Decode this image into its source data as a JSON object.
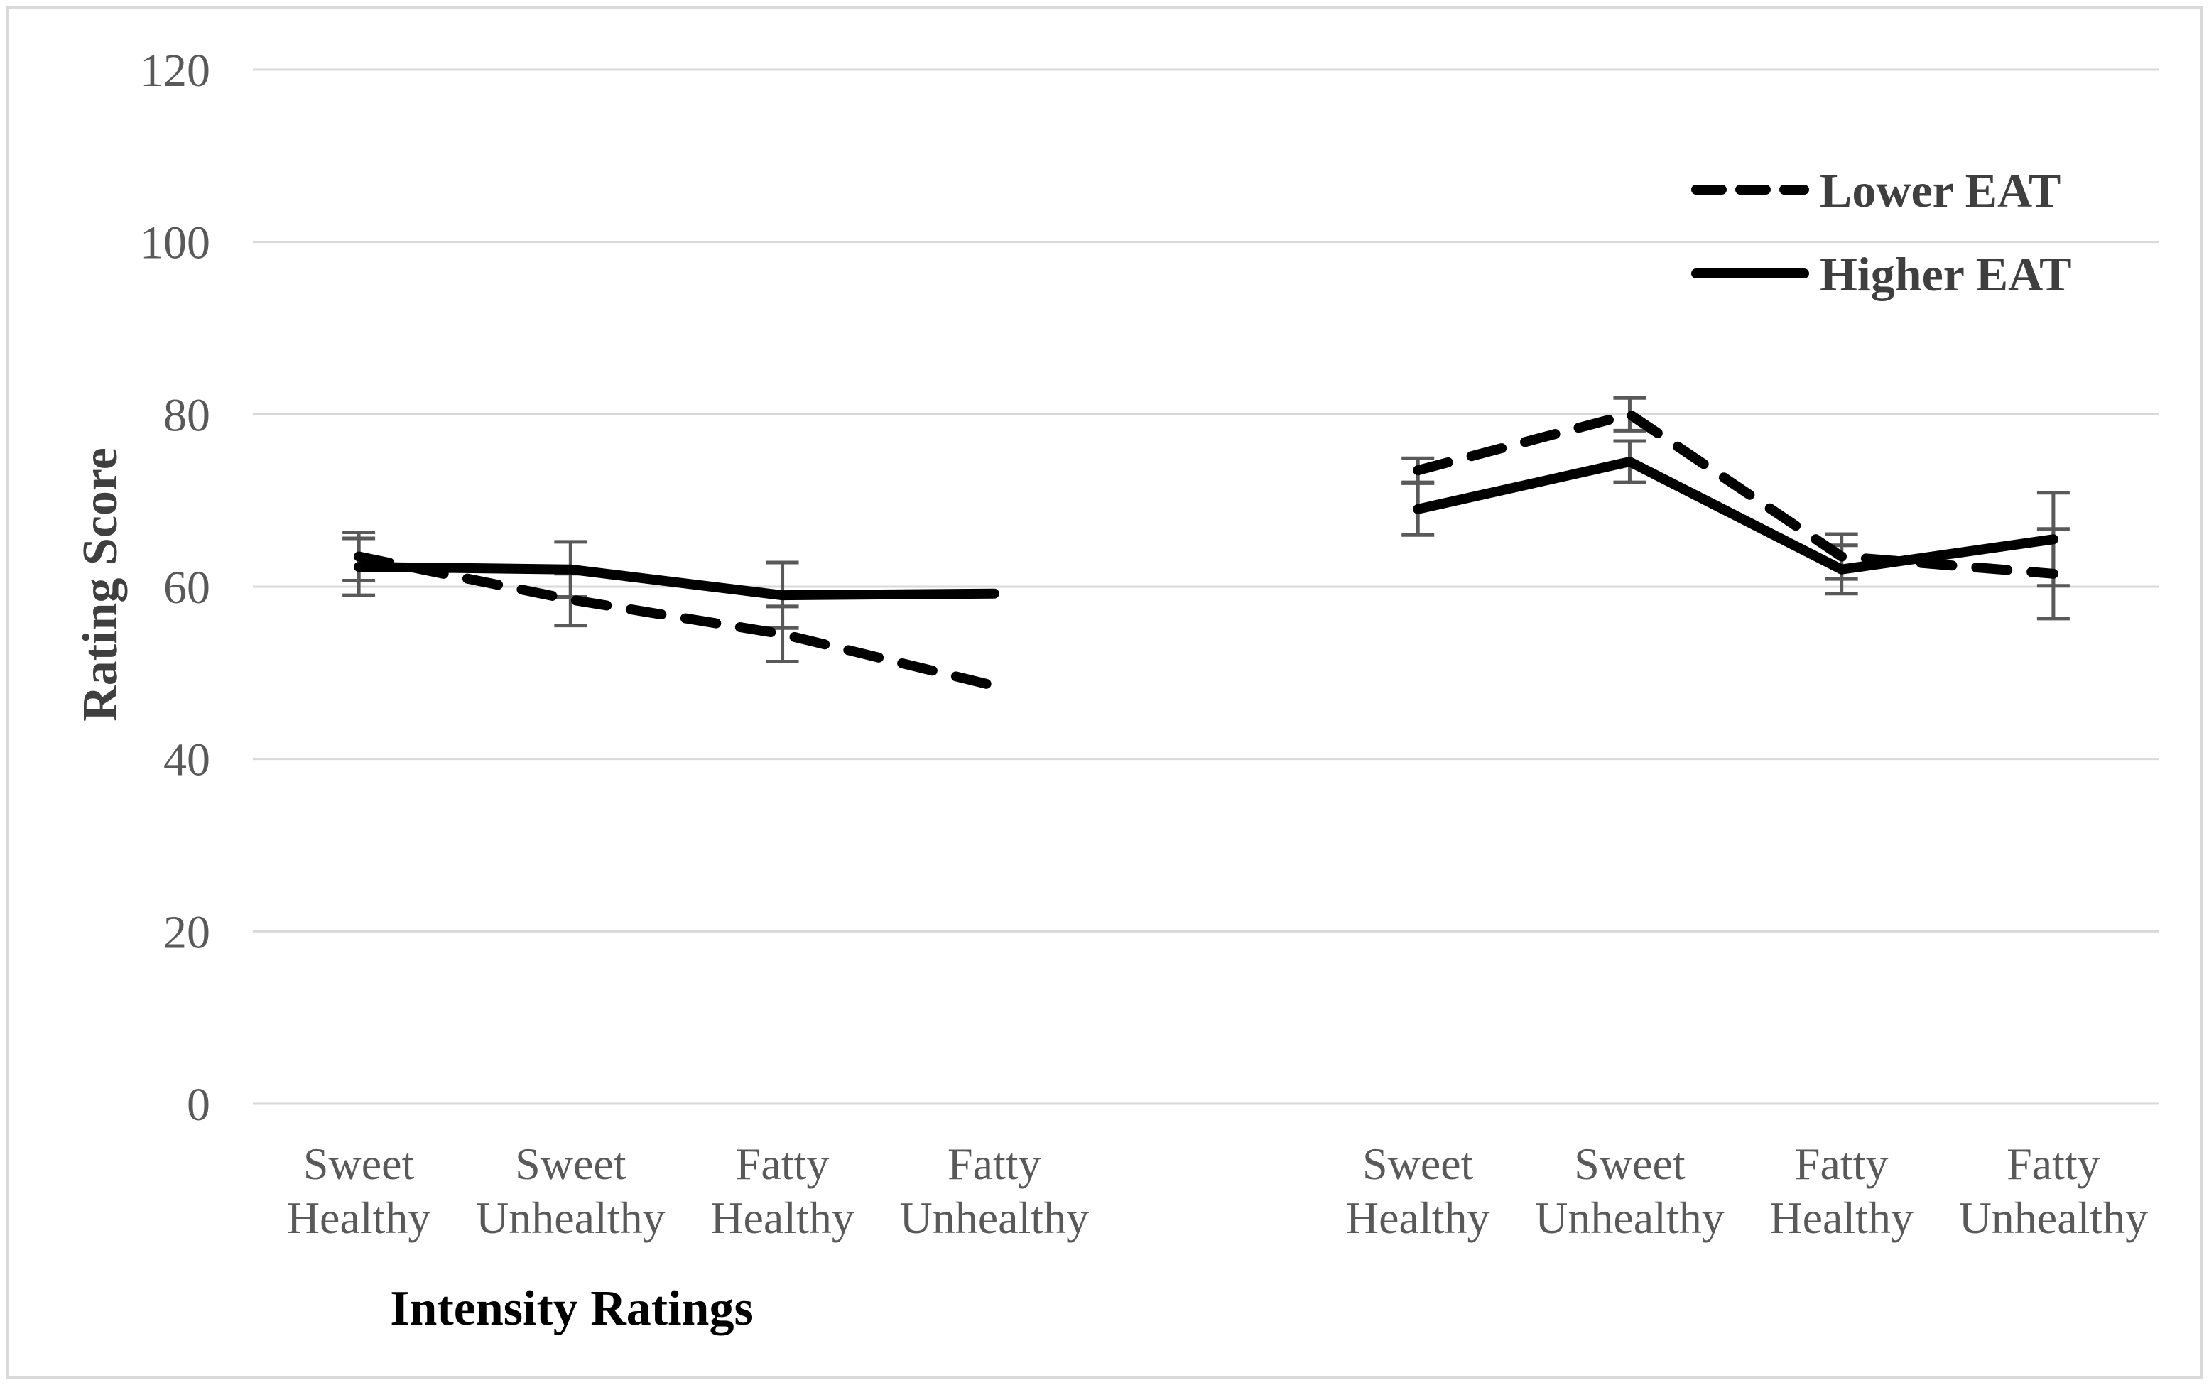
{
  "figure": {
    "background_color": "#ffffff",
    "frame_color": "#d9d9d9"
  },
  "chart_data": {
    "type": "line",
    "title": "",
    "ylabel": "Rating Score",
    "x_axis_title": "Intensity Ratings",
    "y_axis": {
      "min": 0,
      "max": 120,
      "step": 20,
      "ticks": [
        120,
        100,
        80,
        60,
        40,
        20,
        0
      ]
    },
    "slot_count": 9,
    "grid": true,
    "gridline_color": "#d9d9d9",
    "error_bar_color": "#595959",
    "tick_text_color": "#595959",
    "category_text_color": "#595959",
    "legend_text_color": "#3f3f3f",
    "line_color": "#000000",
    "categories": [
      {
        "slot": 0,
        "group": 1,
        "line1": "Sweet",
        "line2": "Healthy"
      },
      {
        "slot": 1,
        "group": 1,
        "line1": "Sweet",
        "line2": "Unhealthy"
      },
      {
        "slot": 2,
        "group": 1,
        "line1": "Fatty",
        "line2": "Healthy"
      },
      {
        "slot": 3,
        "group": 1,
        "line1": "Fatty",
        "line2": "Unhealthy"
      },
      {
        "slot": 5,
        "group": 2,
        "line1": "Sweet",
        "line2": "Healthy"
      },
      {
        "slot": 6,
        "group": 2,
        "line1": "Sweet",
        "line2": "Unhealthy"
      },
      {
        "slot": 7,
        "group": 2,
        "line1": "Fatty",
        "line2": "Healthy"
      },
      {
        "slot": 8,
        "group": 2,
        "line1": "Fatty",
        "line2": "Unhealthy"
      }
    ],
    "series": [
      {
        "name": "Lower EAT",
        "style": "dashed",
        "color": "#000000",
        "points": [
          {
            "slot": 0,
            "value": 63.5,
            "error": 2.8
          },
          {
            "slot": 1,
            "value": 58.5,
            "error": 3.0
          },
          {
            "slot": 2,
            "value": 54.5,
            "error": 3.2
          },
          {
            "slot": 3,
            "value": 48.5,
            "error": null
          },
          {
            "slot": 5,
            "value": 73.5,
            "error": 1.4
          },
          {
            "slot": 6,
            "value": 80.0,
            "error": 1.9
          },
          {
            "slot": 7,
            "value": 63.5,
            "error": 2.6
          },
          {
            "slot": 8,
            "value": 61.5,
            "error": 5.2
          }
        ]
      },
      {
        "name": "Higher EAT",
        "style": "solid",
        "color": "#000000",
        "points": [
          {
            "slot": 0,
            "value": 62.3,
            "error": 3.3
          },
          {
            "slot": 1,
            "value": 62.0,
            "error": 3.2
          },
          {
            "slot": 2,
            "value": 59.0,
            "error": 3.8
          },
          {
            "slot": 3,
            "value": 59.2,
            "error": null
          },
          {
            "slot": 5,
            "value": 69.0,
            "error": 3.0
          },
          {
            "slot": 6,
            "value": 74.5,
            "error": 2.4
          },
          {
            "slot": 7,
            "value": 62.0,
            "error": 2.8
          },
          {
            "slot": 8,
            "value": 65.5,
            "error": 5.4
          }
        ]
      }
    ],
    "legend": {
      "position": "top-right",
      "entries": [
        "Lower EAT",
        "Higher EAT"
      ]
    }
  }
}
